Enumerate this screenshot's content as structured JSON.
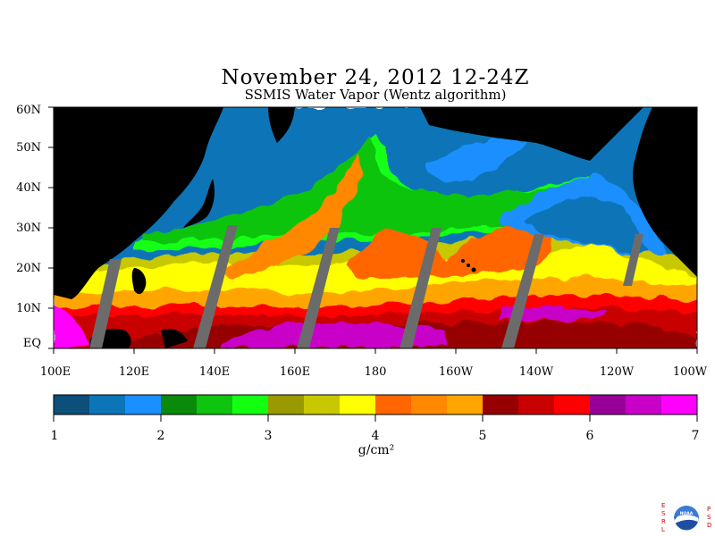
{
  "title": "November 24, 2012  12-24Z",
  "subtitle": "SSMIS Water Vapor (Wentz algorithm)",
  "lat_labels": [
    "60N",
    "50N",
    "40N",
    "30N",
    "20N",
    "10N",
    "EQ"
  ],
  "lon_labels": [
    "100E",
    "120E",
    "140E",
    "160E",
    "180",
    "160W",
    "140W",
    "120W",
    "100W"
  ],
  "colorbar": {
    "labels": [
      "1",
      "2",
      "3",
      "4",
      "5",
      "6",
      "7"
    ],
    "unit": "g/cm²",
    "range": [
      1,
      7
    ],
    "colors": [
      "#0b4f7a",
      "#0b75b7",
      "#1a8fff",
      "#0a8a0a",
      "#0ec40e",
      "#12ff12",
      "#9a9a00",
      "#c8c800",
      "#ffff00",
      "#ff6600",
      "#ff8800",
      "#ffa500",
      "#960000",
      "#c80000",
      "#ff0000",
      "#960096",
      "#c800c8",
      "#ff00ff"
    ]
  },
  "map": {
    "lat_range": [
      0,
      60
    ],
    "lon_range": [
      100,
      260
    ],
    "land_color": "#000000",
    "missing_color": "#6b6b6b"
  },
  "logo_letters": {
    "left": "ESRL",
    "right": "PSD"
  },
  "logo_text": "NOAA"
}
